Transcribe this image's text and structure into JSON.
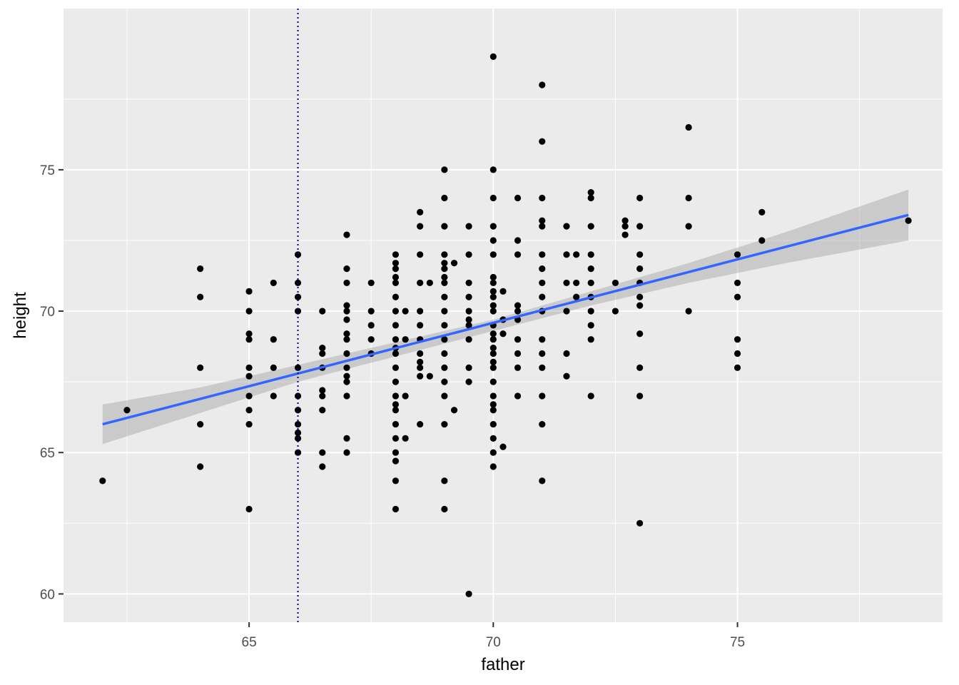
{
  "chart_data": {
    "type": "scatter",
    "title": "",
    "xlabel": "father",
    "ylabel": "height",
    "xlim": [
      61.2,
      79.2
    ],
    "ylim": [
      59.0,
      80.7
    ],
    "x_ticks": [
      65,
      70,
      75
    ],
    "y_ticks": [
      60,
      65,
      70,
      75
    ],
    "x_tick_labels": [
      "65",
      "70",
      "75"
    ],
    "y_tick_labels": [
      "60",
      "65",
      "70",
      "75"
    ],
    "grid": true,
    "vline": {
      "x": 66,
      "style": "dotted",
      "color": "#00008b"
    },
    "fit_line": {
      "x": [
        62,
        78.5
      ],
      "y": [
        66.0,
        73.4
      ],
      "color": "#3366ff"
    },
    "confidence_band": {
      "x": [
        62,
        64,
        66,
        68,
        70,
        72,
        74,
        76,
        78.5
      ],
      "upper": [
        66.7,
        67.3,
        68.1,
        68.9,
        69.7,
        70.7,
        71.7,
        72.8,
        74.3
      ],
      "lower": [
        65.3,
        66.4,
        67.5,
        68.4,
        69.3,
        70.2,
        71.0,
        71.7,
        72.5
      ],
      "color": "#999999"
    },
    "points": [
      [
        62,
        64
      ],
      [
        62.5,
        66.5
      ],
      [
        64,
        71.5
      ],
      [
        64,
        70.5
      ],
      [
        64,
        68
      ],
      [
        64,
        66
      ],
      [
        64,
        64.5
      ],
      [
        65,
        70.7
      ],
      [
        65,
        70
      ],
      [
        65,
        69.2
      ],
      [
        65,
        69
      ],
      [
        65,
        68
      ],
      [
        65,
        67.7
      ],
      [
        65,
        67
      ],
      [
        65,
        66.5
      ],
      [
        65,
        66
      ],
      [
        65,
        63
      ],
      [
        65.5,
        71
      ],
      [
        65.5,
        69
      ],
      [
        65.5,
        68
      ],
      [
        65.5,
        67
      ],
      [
        66,
        72
      ],
      [
        66,
        71
      ],
      [
        66,
        70.5
      ],
      [
        66,
        70
      ],
      [
        66,
        68
      ],
      [
        66,
        67
      ],
      [
        66,
        66.5
      ],
      [
        66,
        66
      ],
      [
        66,
        65.7
      ],
      [
        66,
        65.5
      ],
      [
        66,
        65
      ],
      [
        66.5,
        70
      ],
      [
        66.5,
        68.7
      ],
      [
        66.5,
        68.5
      ],
      [
        66.5,
        68
      ],
      [
        66.5,
        67.2
      ],
      [
        66.5,
        67
      ],
      [
        66.5,
        66.5
      ],
      [
        66.5,
        65
      ],
      [
        66.5,
        64.5
      ],
      [
        67,
        72.7
      ],
      [
        67,
        71.5
      ],
      [
        67,
        71
      ],
      [
        67,
        70.2
      ],
      [
        67,
        70
      ],
      [
        67,
        69.7
      ],
      [
        67,
        69.2
      ],
      [
        67,
        69
      ],
      [
        67,
        68.5
      ],
      [
        67,
        68
      ],
      [
        67,
        67.7
      ],
      [
        67,
        67.5
      ],
      [
        67,
        67
      ],
      [
        67,
        65.5
      ],
      [
        67,
        65
      ],
      [
        67.5,
        71
      ],
      [
        67.5,
        70
      ],
      [
        67.5,
        69.5
      ],
      [
        67.5,
        69
      ],
      [
        67.5,
        68.5
      ],
      [
        68,
        72
      ],
      [
        68,
        71.7
      ],
      [
        68,
        71.5
      ],
      [
        68,
        71.2
      ],
      [
        68,
        71
      ],
      [
        68,
        70.5
      ],
      [
        68,
        70
      ],
      [
        68,
        69.5
      ],
      [
        68,
        69
      ],
      [
        68,
        68.7
      ],
      [
        68,
        68.5
      ],
      [
        68,
        68
      ],
      [
        68,
        67.5
      ],
      [
        68,
        67
      ],
      [
        68,
        66.7
      ],
      [
        68,
        66.5
      ],
      [
        68,
        66
      ],
      [
        68,
        65.5
      ],
      [
        68,
        65
      ],
      [
        68,
        64.7
      ],
      [
        68,
        64
      ],
      [
        68,
        63
      ],
      [
        68.2,
        70
      ],
      [
        68.2,
        69
      ],
      [
        68.2,
        67
      ],
      [
        68.2,
        65.5
      ],
      [
        68.5,
        73.5
      ],
      [
        68.5,
        73
      ],
      [
        68.5,
        72
      ],
      [
        68.5,
        71
      ],
      [
        68.5,
        70
      ],
      [
        68.5,
        69.5
      ],
      [
        68.5,
        69
      ],
      [
        68.5,
        68.5
      ],
      [
        68.5,
        68.2
      ],
      [
        68.5,
        68
      ],
      [
        68.5,
        67.7
      ],
      [
        68.5,
        66
      ],
      [
        68.7,
        71
      ],
      [
        68.7,
        67.7
      ],
      [
        69,
        75
      ],
      [
        69,
        74
      ],
      [
        69,
        73
      ],
      [
        69,
        72
      ],
      [
        69,
        71.7
      ],
      [
        69,
        71.5
      ],
      [
        69,
        71.2
      ],
      [
        69,
        71
      ],
      [
        69,
        70.5
      ],
      [
        69,
        70
      ],
      [
        69,
        69.5
      ],
      [
        69,
        69
      ],
      [
        69,
        68.5
      ],
      [
        69,
        68
      ],
      [
        69,
        67.5
      ],
      [
        69,
        67
      ],
      [
        69,
        66
      ],
      [
        69,
        64
      ],
      [
        69,
        63
      ],
      [
        69.2,
        71.7
      ],
      [
        69.2,
        66.5
      ],
      [
        69.5,
        73
      ],
      [
        69.5,
        72
      ],
      [
        69.5,
        71
      ],
      [
        69.5,
        70.5
      ],
      [
        69.5,
        70
      ],
      [
        69.5,
        69.7
      ],
      [
        69.5,
        69.5
      ],
      [
        69.5,
        69
      ],
      [
        69.5,
        68
      ],
      [
        69.5,
        67.5
      ],
      [
        69.5,
        60
      ],
      [
        70,
        79
      ],
      [
        70,
        75
      ],
      [
        70,
        74
      ],
      [
        70,
        73
      ],
      [
        70,
        72.5
      ],
      [
        70,
        72
      ],
      [
        70,
        71.2
      ],
      [
        70,
        71
      ],
      [
        70,
        70.7
      ],
      [
        70,
        70.5
      ],
      [
        70,
        70.2
      ],
      [
        70,
        70
      ],
      [
        70,
        69.5
      ],
      [
        70,
        69.2
      ],
      [
        70,
        69
      ],
      [
        70,
        68.7
      ],
      [
        70,
        68.5
      ],
      [
        70,
        68.2
      ],
      [
        70,
        68
      ],
      [
        70,
        67.5
      ],
      [
        70,
        67
      ],
      [
        70,
        66.7
      ],
      [
        70,
        66.5
      ],
      [
        70,
        66
      ],
      [
        70,
        65.5
      ],
      [
        70,
        65
      ],
      [
        70,
        64.5
      ],
      [
        70.2,
        70.7
      ],
      [
        70.2,
        69.7
      ],
      [
        70.2,
        69.2
      ],
      [
        70.2,
        65.2
      ],
      [
        70.5,
        74
      ],
      [
        70.5,
        72.5
      ],
      [
        70.5,
        72
      ],
      [
        70.5,
        70.2
      ],
      [
        70.5,
        70
      ],
      [
        70.5,
        69.7
      ],
      [
        70.5,
        69
      ],
      [
        70.5,
        68.5
      ],
      [
        70.5,
        68
      ],
      [
        70.5,
        67
      ],
      [
        71,
        78
      ],
      [
        71,
        76
      ],
      [
        71,
        74
      ],
      [
        71,
        73.2
      ],
      [
        71,
        73
      ],
      [
        71,
        72
      ],
      [
        71,
        71.5
      ],
      [
        71,
        71
      ],
      [
        71,
        70.5
      ],
      [
        71,
        70
      ],
      [
        71,
        69
      ],
      [
        71,
        68.5
      ],
      [
        71,
        68
      ],
      [
        71,
        67
      ],
      [
        71,
        66
      ],
      [
        71,
        64
      ],
      [
        71.5,
        73
      ],
      [
        71.5,
        72
      ],
      [
        71.5,
        71
      ],
      [
        71.5,
        70
      ],
      [
        71.5,
        68.5
      ],
      [
        71.5,
        67.7
      ],
      [
        71.7,
        72
      ],
      [
        71.7,
        71
      ],
      [
        71.7,
        70.5
      ],
      [
        72,
        74.2
      ],
      [
        72,
        74
      ],
      [
        72,
        73
      ],
      [
        72,
        72
      ],
      [
        72,
        71.5
      ],
      [
        72,
        71
      ],
      [
        72,
        70.5
      ],
      [
        72,
        70
      ],
      [
        72,
        69.5
      ],
      [
        72,
        69
      ],
      [
        72,
        67
      ],
      [
        72.5,
        71
      ],
      [
        72.5,
        70
      ],
      [
        72.7,
        73.2
      ],
      [
        72.7,
        73
      ],
      [
        72.7,
        72.7
      ],
      [
        73,
        74
      ],
      [
        73,
        73
      ],
      [
        73,
        72
      ],
      [
        73,
        71.5
      ],
      [
        73,
        71
      ],
      [
        73,
        70.5
      ],
      [
        73,
        70.2
      ],
      [
        73,
        69.2
      ],
      [
        73,
        68
      ],
      [
        73,
        67
      ],
      [
        73,
        62.5
      ],
      [
        74,
        76.5
      ],
      [
        74,
        74
      ],
      [
        74,
        73
      ],
      [
        74,
        70
      ],
      [
        75,
        72
      ],
      [
        75,
        71
      ],
      [
        75,
        70.5
      ],
      [
        75,
        69
      ],
      [
        75,
        68.5
      ],
      [
        75,
        68
      ],
      [
        75.5,
        73.5
      ],
      [
        75.5,
        72.5
      ],
      [
        78.5,
        73.2
      ]
    ]
  }
}
